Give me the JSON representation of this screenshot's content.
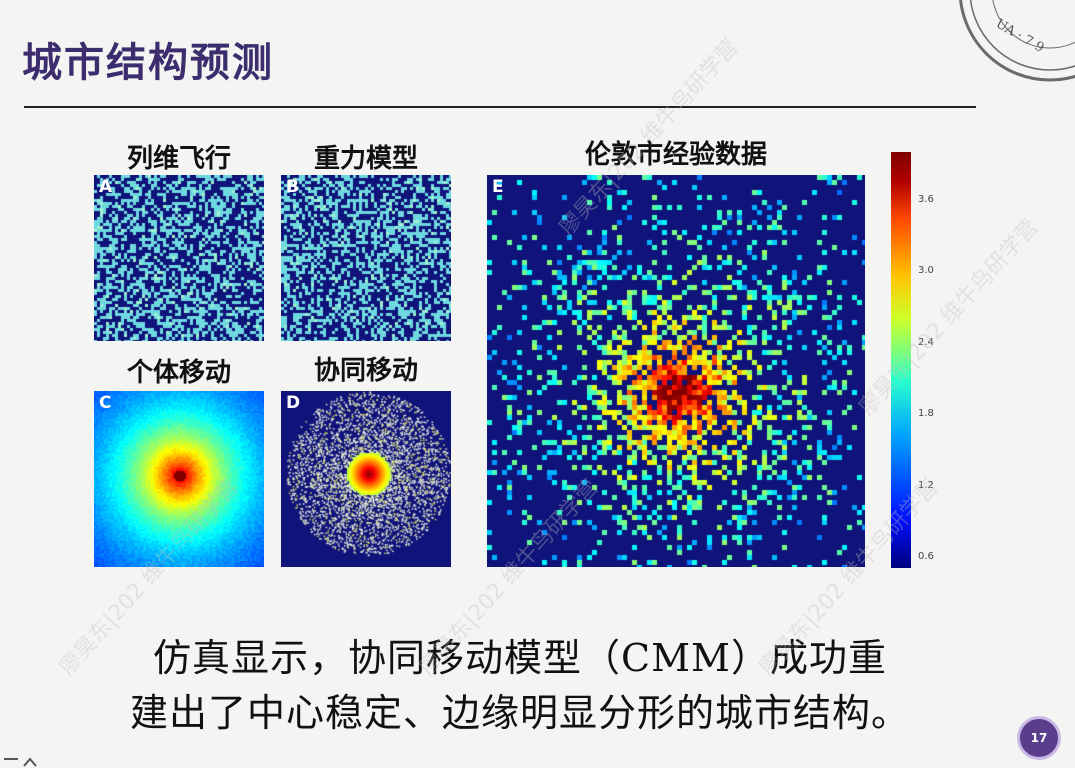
{
  "slide": {
    "title": "城市结构预测",
    "caption_line1": "仿真显示，协同移动模型（CMM）成功重",
    "caption_line2": "建出了中心稳定、边缘明显分形的城市结构。",
    "page_number": "17"
  },
  "figure": {
    "panels": [
      {
        "letter": "A",
        "label": "列维飞行"
      },
      {
        "letter": "B",
        "label": "重力模型"
      },
      {
        "letter": "C",
        "label": "个体移动"
      },
      {
        "letter": "D",
        "label": "协同移动"
      },
      {
        "letter": "E",
        "label": "伦敦市经验数据"
      }
    ],
    "colorbar_ticks": [
      "3.6",
      "3.0",
      "2.4",
      "1.8",
      "1.2",
      "0.6"
    ]
  },
  "watermark": {
    "text": "廖昊东|202 维牛鸟研学营"
  },
  "seal": {
    "text": "UA · 7 9"
  },
  "colors": {
    "title": "#3c2e6e",
    "panel_bg": "#10147a",
    "page_badge": "#5a3e8c"
  }
}
